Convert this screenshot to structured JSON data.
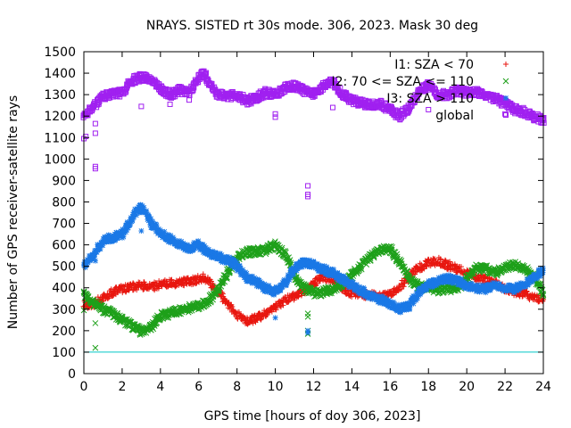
{
  "chart_data": {
    "type": "scatter",
    "title": "NRAYS. SISTED rt 30s mode. 306, 2023. Mask 30 deg",
    "xlabel": "GPS time [hours of doy 306, 2023]",
    "ylabel": "Number of GPS receiver-satellite rays",
    "xlim": [
      0,
      24
    ],
    "ylim": [
      0,
      1500
    ],
    "xticks": [
      "0",
      "2",
      "4",
      "6",
      "8",
      "10",
      "12",
      "14",
      "16",
      "18",
      "20",
      "22",
      "24"
    ],
    "yticks": [
      "0",
      "100",
      "200",
      "300",
      "400",
      "500",
      "600",
      "700",
      "800",
      "900",
      "1000",
      "1100",
      "1200",
      "1300",
      "1400",
      "1500"
    ],
    "grid": false,
    "legend_position": "top-right",
    "reference_line": {
      "y": 100,
      "color": "#00c8c8"
    },
    "series": [
      {
        "name": "I1: SZA < 70",
        "marker": "+",
        "color": "#e8160f",
        "x": [
          0,
          0.5,
          1,
          1.5,
          2,
          2.5,
          3,
          3.5,
          4,
          4.5,
          5,
          5.5,
          6,
          6.3,
          6.6,
          7,
          7.5,
          8,
          8.5,
          9,
          9.5,
          10,
          10.5,
          11,
          11.5,
          12,
          12.5,
          13,
          13.5,
          14,
          14.5,
          15,
          15.5,
          16,
          16.5,
          17,
          17.5,
          18,
          18.5,
          19,
          19.5,
          20,
          20.5,
          21,
          21.5,
          22,
          22.5,
          23,
          23.5,
          24
        ],
        "values": [
          320,
          325,
          355,
          380,
          395,
          405,
          410,
          405,
          415,
          420,
          425,
          430,
          440,
          450,
          420,
          380,
          330,
          275,
          245,
          255,
          285,
          310,
          340,
          360,
          385,
          420,
          450,
          440,
          400,
          375,
          370,
          365,
          360,
          370,
          405,
          455,
          495,
          515,
          525,
          505,
          490,
          470,
          450,
          435,
          420,
          395,
          380,
          370,
          355,
          345
        ],
        "outliers": []
      },
      {
        "name": "I2: 70 <= SZA <= 110",
        "marker": "x",
        "color": "#1ea01a",
        "x": [
          0,
          0.5,
          1,
          1.5,
          2,
          2.5,
          3,
          3.5,
          4,
          4.5,
          5,
          5.5,
          6,
          6.5,
          7,
          7.5,
          8,
          8.5,
          9,
          9.5,
          10,
          10.5,
          11,
          11.5,
          12,
          12.5,
          13,
          13.5,
          14,
          14.5,
          15,
          15.5,
          16,
          16.5,
          17,
          17.5,
          18,
          18.5,
          19,
          19.5,
          20,
          20.5,
          21,
          21.5,
          22,
          22.5,
          23,
          23.5,
          24
        ],
        "values": [
          365,
          330,
          300,
          280,
          250,
          225,
          195,
          215,
          270,
          280,
          295,
          305,
          315,
          340,
          390,
          470,
          540,
          565,
          570,
          575,
          600,
          560,
          460,
          400,
          375,
          380,
          395,
          415,
          460,
          500,
          545,
          575,
          580,
          520,
          440,
          405,
          400,
          390,
          395,
          400,
          440,
          490,
          490,
          470,
          495,
          505,
          490,
          455,
          375
        ],
        "outliers": [
          [
            0,
            295
          ],
          [
            0.6,
            235
          ],
          [
            0.6,
            120
          ],
          [
            11.7,
            280
          ],
          [
            11.7,
            265
          ],
          [
            11.7,
            200
          ],
          [
            11.7,
            185
          ]
        ]
      },
      {
        "name": "I3: SZA > 110",
        "marker": "*",
        "color": "#1a78e6",
        "x": [
          0,
          0.5,
          1,
          1.5,
          2,
          2.5,
          2.8,
          3,
          3.3,
          3.5,
          4,
          4.5,
          5,
          5.5,
          6,
          6.5,
          7,
          7.5,
          8,
          8.5,
          9,
          9.5,
          10,
          10.5,
          11,
          11.5,
          12,
          12.5,
          13,
          13.5,
          14,
          14.5,
          15,
          15.5,
          16,
          16.5,
          17,
          17.5,
          18,
          18.5,
          19,
          19.5,
          20,
          20.5,
          21,
          21.5,
          22,
          22.5,
          23,
          23.5,
          24
        ],
        "values": [
          500,
          555,
          620,
          635,
          650,
          720,
          765,
          770,
          740,
          700,
          655,
          630,
          605,
          585,
          600,
          565,
          545,
          530,
          500,
          450,
          425,
          400,
          380,
          420,
          490,
          520,
          505,
          485,
          470,
          440,
          410,
          385,
          360,
          345,
          325,
          300,
          315,
          380,
          415,
          430,
          445,
          430,
          410,
          395,
          395,
          415,
          400,
          395,
          415,
          450,
          480
        ],
        "outliers": [
          [
            0.6,
            525
          ],
          [
            3,
            665
          ],
          [
            10,
            260
          ],
          [
            11.7,
            200
          ],
          [
            11.7,
            190
          ]
        ]
      },
      {
        "name": "global",
        "marker": "square",
        "color": "#a020f0",
        "x": [
          0,
          0.5,
          1,
          1.5,
          2,
          2.5,
          3,
          3.5,
          4,
          4.5,
          5,
          5.5,
          6,
          6.3,
          6.6,
          7,
          7.5,
          8,
          8.5,
          9,
          9.5,
          10,
          10.5,
          11,
          11.5,
          12,
          12.5,
          13,
          13.5,
          14,
          14.5,
          15,
          15.5,
          16,
          16.5,
          17,
          17.5,
          18,
          18.5,
          19,
          19.5,
          20,
          20.5,
          21,
          21.5,
          22,
          22.5,
          23,
          23.5,
          24
        ],
        "values": [
          1200,
          1245,
          1290,
          1300,
          1310,
          1365,
          1380,
          1375,
          1330,
          1300,
          1320,
          1310,
          1380,
          1400,
          1350,
          1300,
          1290,
          1300,
          1270,
          1285,
          1310,
          1300,
          1330,
          1340,
          1320,
          1300,
          1340,
          1360,
          1300,
          1275,
          1260,
          1250,
          1255,
          1230,
          1200,
          1240,
          1310,
          1345,
          1300,
          1300,
          1320,
          1310,
          1310,
          1300,
          1280,
          1260,
          1230,
          1220,
          1195,
          1185
        ],
        "outliers": [
          [
            0,
            1095
          ],
          [
            0.1,
            1105
          ],
          [
            0.6,
            1165
          ],
          [
            0.6,
            1120
          ],
          [
            0.6,
            955
          ],
          [
            0.6,
            965
          ],
          [
            3,
            1245
          ],
          [
            4.5,
            1255
          ],
          [
            5.5,
            1275
          ],
          [
            10,
            1195
          ],
          [
            10,
            1210
          ],
          [
            11.7,
            875
          ],
          [
            11.7,
            835
          ],
          [
            11.7,
            825
          ],
          [
            13,
            1240
          ],
          [
            18,
            1230
          ],
          [
            22,
            1210
          ]
        ]
      }
    ]
  }
}
